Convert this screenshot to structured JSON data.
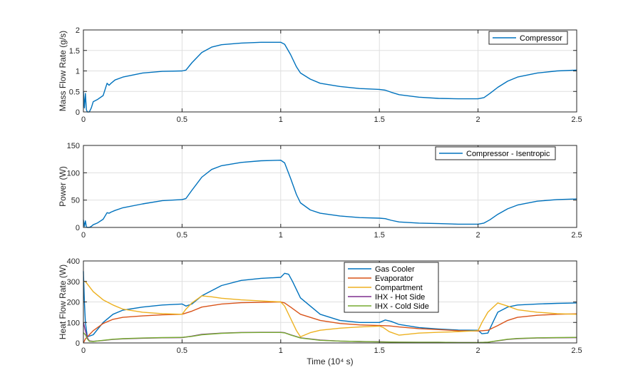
{
  "chart_data": [
    {
      "type": "line",
      "ylabel": "Mass Flow Rate (g/s)",
      "xlim": [
        0,
        2.5
      ],
      "ylim": [
        0,
        2
      ],
      "x_ticks": [
        "0",
        "0.5",
        "1",
        "1.5",
        "2",
        "2.5"
      ],
      "y_ticks": [
        "0",
        "0.5",
        "1",
        "1.5",
        "2"
      ],
      "grid": true,
      "legend_position": "top-right",
      "series": [
        {
          "name": "Compressor",
          "color": "#0072BD",
          "x": [
            0,
            0.005,
            0.01,
            0.015,
            0.02,
            0.03,
            0.04,
            0.05,
            0.07,
            0.1,
            0.12,
            0.13,
            0.14,
            0.16,
            0.2,
            0.3,
            0.4,
            0.5,
            0.52,
            0.55,
            0.6,
            0.65,
            0.7,
            0.8,
            0.9,
            1.0,
            1.02,
            1.05,
            1.08,
            1.1,
            1.15,
            1.2,
            1.3,
            1.4,
            1.5,
            1.53,
            1.56,
            1.6,
            1.7,
            1.8,
            1.9,
            2.0,
            2.03,
            2.06,
            2.1,
            2.15,
            2.2,
            2.3,
            2.4,
            2.5
          ],
          "y": [
            0.5,
            0.1,
            0.45,
            0.05,
            0.0,
            0.0,
            0.1,
            0.25,
            0.3,
            0.4,
            0.7,
            0.65,
            0.7,
            0.78,
            0.85,
            0.95,
            0.99,
            1.0,
            1.02,
            1.2,
            1.45,
            1.58,
            1.64,
            1.68,
            1.7,
            1.7,
            1.65,
            1.4,
            1.1,
            0.95,
            0.8,
            0.7,
            0.62,
            0.57,
            0.55,
            0.53,
            0.48,
            0.42,
            0.36,
            0.33,
            0.32,
            0.32,
            0.35,
            0.45,
            0.6,
            0.75,
            0.85,
            0.95,
            1.0,
            1.02
          ]
        }
      ]
    },
    {
      "type": "line",
      "ylabel": "Power (W)",
      "xlim": [
        0,
        2.5
      ],
      "ylim": [
        0,
        150
      ],
      "x_ticks": [
        "0",
        "0.5",
        "1",
        "1.5",
        "2",
        "2.5"
      ],
      "y_ticks": [
        "0",
        "50",
        "100",
        "150"
      ],
      "grid": true,
      "legend_position": "top-right",
      "series": [
        {
          "name": "Compressor - Isentropic",
          "color": "#0072BD",
          "x": [
            0,
            0.005,
            0.01,
            0.015,
            0.02,
            0.03,
            0.04,
            0.05,
            0.07,
            0.1,
            0.12,
            0.13,
            0.14,
            0.16,
            0.2,
            0.3,
            0.4,
            0.5,
            0.52,
            0.55,
            0.6,
            0.65,
            0.7,
            0.8,
            0.9,
            1.0,
            1.02,
            1.05,
            1.08,
            1.1,
            1.15,
            1.2,
            1.3,
            1.4,
            1.5,
            1.53,
            1.56,
            1.6,
            1.7,
            1.8,
            1.9,
            2.0,
            2.03,
            2.06,
            2.1,
            2.15,
            2.2,
            2.3,
            2.4,
            2.5
          ],
          "y": [
            14,
            2,
            12,
            1,
            0,
            0,
            2,
            5,
            8,
            15,
            27,
            26,
            28,
            31,
            36,
            43,
            49,
            51,
            53,
            68,
            92,
            106,
            113,
            119,
            122,
            123,
            118,
            90,
            60,
            45,
            32,
            26,
            21,
            18,
            17,
            16,
            13,
            10,
            8,
            7,
            6,
            6,
            8,
            14,
            24,
            34,
            41,
            48,
            51,
            52
          ]
        }
      ]
    },
    {
      "type": "line",
      "ylabel": "Heat Flow Rate (W)",
      "xlabel": "Time  (10⁴  s)",
      "xlim": [
        0,
        2.5
      ],
      "ylim": [
        0,
        400
      ],
      "x_ticks": [
        "0",
        "0.5",
        "1",
        "1.5",
        "2",
        "2.5"
      ],
      "y_ticks": [
        "0",
        "100",
        "200",
        "300",
        "400"
      ],
      "grid": true,
      "legend_position": "top-center",
      "series": [
        {
          "name": "Gas Cooler",
          "color": "#0072BD",
          "x": [
            0,
            0.005,
            0.01,
            0.02,
            0.05,
            0.1,
            0.15,
            0.2,
            0.3,
            0.4,
            0.5,
            0.52,
            0.55,
            0.6,
            0.7,
            0.8,
            0.9,
            1.0,
            1.02,
            1.04,
            1.06,
            1.1,
            1.2,
            1.3,
            1.4,
            1.5,
            1.53,
            1.56,
            1.6,
            1.7,
            1.8,
            1.9,
            2.0,
            2.02,
            2.05,
            2.08,
            2.1,
            2.15,
            2.2,
            2.3,
            2.4,
            2.5
          ],
          "y": [
            350,
            200,
            100,
            30,
            40,
            100,
            140,
            160,
            175,
            185,
            190,
            180,
            190,
            230,
            280,
            305,
            315,
            320,
            340,
            335,
            300,
            220,
            140,
            110,
            100,
            100,
            112,
            105,
            90,
            75,
            68,
            63,
            62,
            45,
            48,
            110,
            150,
            175,
            185,
            190,
            193,
            195
          ]
        },
        {
          "name": "Evaporator",
          "color": "#D95319",
          "x": [
            0,
            0.01,
            0.03,
            0.05,
            0.1,
            0.15,
            0.2,
            0.3,
            0.4,
            0.5,
            0.55,
            0.6,
            0.7,
            0.8,
            0.9,
            1.0,
            1.02,
            1.05,
            1.1,
            1.2,
            1.3,
            1.4,
            1.5,
            1.55,
            1.6,
            1.7,
            1.8,
            1.9,
            2.0,
            2.05,
            2.1,
            2.15,
            2.2,
            2.3,
            2.4,
            2.5
          ],
          "y": [
            0,
            20,
            40,
            60,
            95,
            115,
            125,
            132,
            137,
            140,
            155,
            175,
            190,
            196,
            198,
            200,
            195,
            175,
            140,
            110,
            95,
            88,
            85,
            83,
            78,
            70,
            65,
            60,
            58,
            62,
            85,
            110,
            125,
            135,
            140,
            142
          ]
        },
        {
          "name": "Compartment",
          "color": "#EDB120",
          "x": [
            0,
            0.01,
            0.05,
            0.1,
            0.15,
            0.2,
            0.3,
            0.4,
            0.5,
            0.52,
            0.55,
            0.6,
            0.65,
            0.7,
            0.8,
            0.9,
            1.0,
            1.02,
            1.05,
            1.08,
            1.1,
            1.15,
            1.2,
            1.3,
            1.4,
            1.5,
            1.52,
            1.55,
            1.6,
            1.7,
            1.8,
            1.9,
            2.0,
            2.02,
            2.05,
            2.1,
            2.15,
            2.2,
            2.3,
            2.4,
            2.5
          ],
          "y": [
            300,
            300,
            250,
            210,
            185,
            165,
            150,
            143,
            140,
            165,
            195,
            230,
            225,
            218,
            210,
            205,
            200,
            180,
            120,
            60,
            30,
            50,
            62,
            72,
            78,
            82,
            75,
            55,
            38,
            48,
            52,
            55,
            60,
            100,
            150,
            195,
            180,
            162,
            150,
            143,
            140
          ]
        },
        {
          "name": "IHX - Hot Side",
          "color": "#7E2F8E",
          "x": [
            0,
            0.01,
            0.02,
            0.03,
            0.05,
            0.1,
            0.15,
            0.2,
            0.3,
            0.4,
            0.5,
            0.55,
            0.6,
            0.7,
            0.8,
            0.9,
            1.0,
            1.02,
            1.05,
            1.1,
            1.2,
            1.3,
            1.4,
            1.5,
            1.6,
            1.7,
            1.8,
            1.9,
            2.0,
            2.05,
            2.1,
            2.15,
            2.2,
            2.3,
            2.4,
            2.5
          ],
          "y": [
            100,
            60,
            25,
            10,
            8,
            12,
            17,
            20,
            23,
            25,
            26,
            33,
            42,
            48,
            51,
            52,
            52,
            50,
            40,
            25,
            14,
            9,
            7,
            6,
            4,
            3,
            3,
            2,
            2,
            4,
            10,
            17,
            21,
            24,
            25,
            26
          ]
        },
        {
          "name": "IHX - Cold Side",
          "color": "#77AC30",
          "x": [
            0,
            0.01,
            0.02,
            0.03,
            0.05,
            0.1,
            0.15,
            0.2,
            0.3,
            0.4,
            0.5,
            0.55,
            0.6,
            0.7,
            0.8,
            0.9,
            1.0,
            1.02,
            1.05,
            1.1,
            1.2,
            1.3,
            1.4,
            1.5,
            1.6,
            1.7,
            1.8,
            1.9,
            2.0,
            2.05,
            2.1,
            2.15,
            2.2,
            2.3,
            2.4,
            2.5
          ],
          "y": [
            50,
            40,
            20,
            8,
            7,
            13,
            18,
            21,
            24,
            26,
            27,
            32,
            40,
            47,
            50,
            51,
            51,
            49,
            39,
            24,
            13,
            9,
            7,
            5,
            4,
            3,
            3,
            2,
            2,
            4,
            11,
            18,
            22,
            25,
            26,
            27
          ]
        }
      ]
    }
  ]
}
